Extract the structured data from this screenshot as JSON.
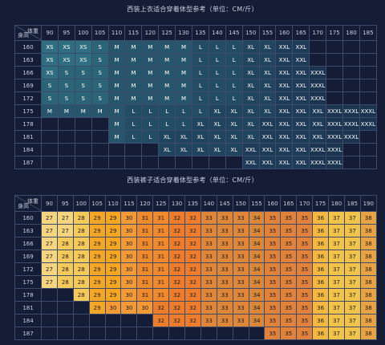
{
  "jacket": {
    "title": "西装上衣适合穿着体型参考（单位：CM/斤）",
    "corner_weight": "体重",
    "corner_height": "身高",
    "weights": [
      "90",
      "95",
      "100",
      "105",
      "110",
      "115",
      "120",
      "125",
      "130",
      "135",
      "140",
      "145",
      "150",
      "155",
      "160",
      "165",
      "170",
      "175",
      "180",
      "185"
    ],
    "rows": [
      {
        "height": "160",
        "cells": [
          "XS",
          "XS",
          "XS",
          "S",
          "M",
          "M",
          "M",
          "M",
          "M",
          "L",
          "L",
          "L",
          "XL",
          "XL",
          "XXL",
          "XXL",
          "",
          "",
          "",
          ""
        ]
      },
      {
        "height": "163",
        "cells": [
          "XS",
          "XS",
          "XS",
          "S",
          "M",
          "M",
          "M",
          "M",
          "M",
          "L",
          "L",
          "L",
          "XL",
          "XL",
          "XXL",
          "XXL",
          "",
          "",
          "",
          ""
        ]
      },
      {
        "height": "166",
        "cells": [
          "XS",
          "S",
          "S",
          "S",
          "M",
          "M",
          "M",
          "M",
          "M",
          "L",
          "L",
          "L",
          "XL",
          "XL",
          "XXL",
          "XXL",
          "XXXL",
          "",
          "",
          ""
        ]
      },
      {
        "height": "169",
        "cells": [
          "S",
          "S",
          "S",
          "S",
          "M",
          "M",
          "M",
          "M",
          "M",
          "L",
          "L",
          "L",
          "XL",
          "XL",
          "XXL",
          "XXL",
          "XXXL",
          "",
          "",
          ""
        ]
      },
      {
        "height": "172",
        "cells": [
          "S",
          "S",
          "S",
          "S",
          "M",
          "M",
          "M",
          "M",
          "M",
          "L",
          "L",
          "L",
          "XL",
          "XL",
          "XXL",
          "XXL",
          "XXXL",
          "",
          "",
          ""
        ]
      },
      {
        "height": "175",
        "cells": [
          "M",
          "M",
          "M",
          "M",
          "M",
          "L",
          "L",
          "L",
          "L",
          "L",
          "XL",
          "XL",
          "XL",
          "XL",
          "XXL",
          "XXL",
          "XXL",
          "XXXL",
          "XXXL",
          "XXXL"
        ]
      },
      {
        "height": "178",
        "cells": [
          "",
          "",
          "",
          "",
          "M",
          "L",
          "L",
          "L",
          "L",
          "XL",
          "XL",
          "XL",
          "XL",
          "XXL",
          "XXL",
          "XXL",
          "XXL",
          "XXXL",
          "XXXL",
          "XXXL"
        ]
      },
      {
        "height": "181",
        "cells": [
          "",
          "",
          "",
          "",
          "M",
          "L",
          "L",
          "XL",
          "XL",
          "XL",
          "XL",
          "XL",
          "XL",
          "XXL",
          "XXL",
          "XXL",
          "XXL",
          "XXXL",
          "XXXL",
          ""
        ]
      },
      {
        "height": "184",
        "cells": [
          "",
          "",
          "",
          "",
          "",
          "",
          "",
          "XL",
          "XL",
          "XL",
          "XL",
          "XL",
          "XXL",
          "XXL",
          "XXL",
          "XXL",
          "XXXL",
          "XXXL",
          "",
          ""
        ]
      },
      {
        "height": "187",
        "cells": [
          "",
          "",
          "",
          "",
          "",
          "",
          "",
          "",
          "",
          "",
          "",
          "",
          "XXL",
          "XXL",
          "XXL",
          "XXL",
          "XXXL",
          "XXXL",
          "",
          ""
        ]
      }
    ],
    "colors": {
      "XS": "#2f6e80",
      "S": "#2b6377",
      "M": "#27566c",
      "L": "#234d65",
      "XL": "#21455e",
      "XXL": "#1e3c57",
      "XXXL": "#1b3450"
    }
  },
  "pants": {
    "title": "西装裤子适合穿着体型参考（单位：CM/斤）",
    "corner_weight": "体重",
    "corner_height": "身高",
    "weights": [
      "90",
      "95",
      "100",
      "105",
      "110",
      "115",
      "120",
      "125",
      "130",
      "135",
      "140",
      "145",
      "150",
      "155",
      "160",
      "165",
      "170",
      "175",
      "180",
      "185",
      "190"
    ],
    "rows": [
      {
        "height": "160",
        "cells": [
          "27",
          "27",
          "28",
          "29",
          "29",
          "30",
          "31",
          "31",
          "32",
          "32",
          "33",
          "33",
          "33",
          "34",
          "35",
          "35",
          "35",
          "36",
          "37",
          "37",
          "38"
        ]
      },
      {
        "height": "163",
        "cells": [
          "27",
          "27",
          "28",
          "29",
          "29",
          "30",
          "31",
          "31",
          "32",
          "32",
          "33",
          "33",
          "33",
          "34",
          "35",
          "35",
          "35",
          "36",
          "37",
          "37",
          "38"
        ]
      },
      {
        "height": "166",
        "cells": [
          "27",
          "28",
          "28",
          "29",
          "29",
          "30",
          "31",
          "31",
          "32",
          "32",
          "33",
          "33",
          "33",
          "34",
          "35",
          "35",
          "35",
          "36",
          "37",
          "37",
          "38"
        ]
      },
      {
        "height": "169",
        "cells": [
          "27",
          "28",
          "28",
          "29",
          "29",
          "30",
          "31",
          "31",
          "32",
          "32",
          "33",
          "33",
          "33",
          "34",
          "35",
          "35",
          "35",
          "36",
          "37",
          "37",
          "38"
        ]
      },
      {
        "height": "172",
        "cells": [
          "27",
          "28",
          "28",
          "29",
          "29",
          "30",
          "31",
          "31",
          "32",
          "32",
          "33",
          "33",
          "33",
          "34",
          "35",
          "35",
          "35",
          "36",
          "37",
          "37",
          "38"
        ]
      },
      {
        "height": "175",
        "cells": [
          "27",
          "28",
          "28",
          "29",
          "29",
          "30",
          "31",
          "31",
          "32",
          "32",
          "33",
          "33",
          "33",
          "34",
          "35",
          "35",
          "35",
          "36",
          "37",
          "37",
          "38"
        ]
      },
      {
        "height": "178",
        "cells": [
          "",
          "",
          "28",
          "29",
          "29",
          "30",
          "31",
          "31",
          "32",
          "32",
          "33",
          "33",
          "33",
          "34",
          "35",
          "35",
          "35",
          "36",
          "37",
          "37",
          "38"
        ]
      },
      {
        "height": "181",
        "cells": [
          "",
          "",
          "",
          "29",
          "30",
          "30",
          "30",
          "32",
          "32",
          "32",
          "33",
          "33",
          "33",
          "34",
          "35",
          "35",
          "35",
          "36",
          "37",
          "37",
          "38"
        ]
      },
      {
        "height": "184",
        "cells": [
          "",
          "",
          "",
          "",
          "",
          "",
          "",
          "32",
          "32",
          "32",
          "33",
          "33",
          "33",
          "34",
          "35",
          "35",
          "35",
          "36",
          "37",
          "37",
          "38"
        ]
      },
      {
        "height": "187",
        "cells": [
          "",
          "",
          "",
          "",
          "",
          "",
          "",
          "",
          "",
          "",
          "",
          "",
          "",
          "",
          "35",
          "35",
          "35",
          "36",
          "37",
          "37",
          "38"
        ]
      }
    ],
    "colors": {
      "27": "#f7d57e",
      "28": "#f5c95a",
      "29": "#f5a623",
      "30": "#f39a36",
      "31": "#f08a2c",
      "32": "#ed7d2b",
      "33": "#e08639",
      "34": "#d98739",
      "35": "#e0823a",
      "36": "#f4b73f",
      "37": "#f2c34b",
      "38": "#e7a243"
    }
  }
}
